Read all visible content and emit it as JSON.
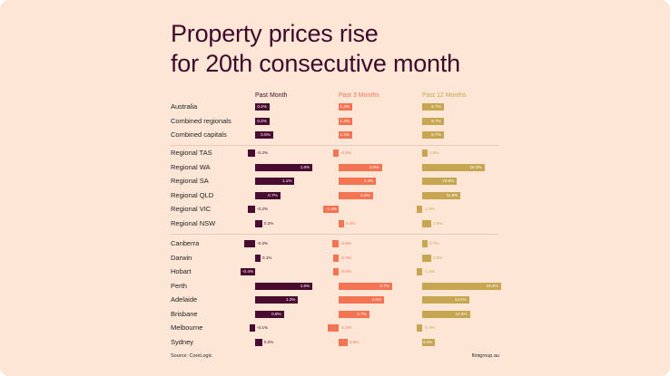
{
  "chart_data": {
    "type": "bar",
    "title": "Property prices rise for 20th consecutive month",
    "title_lines": [
      "Property prices rise",
      "for 20th consecutive month"
    ],
    "xlabel": "",
    "ylabel": "",
    "series": [
      {
        "name": "Past Month",
        "color": "#4a0b31",
        "key": "m1"
      },
      {
        "name": "Past 3 Months",
        "color": "#f47352",
        "key": "m3"
      },
      {
        "name": "Past 12 Months",
        "color": "#c6a650",
        "key": "m12"
      }
    ],
    "groups": [
      {
        "name": "national",
        "rows": [
          {
            "label": "Australia",
            "m1": 0.4,
            "m3": 1.2,
            "m12": 6.7
          },
          {
            "label": "Combined regionals",
            "m1": 0.4,
            "m3": 1.2,
            "m12": 6.7
          },
          {
            "label": "Combined capitals",
            "m1": 0.5,
            "m3": 1.2,
            "m12": 6.7
          }
        ]
      },
      {
        "name": "regional",
        "rows": [
          {
            "label": "Regional TAS",
            "m1": -0.2,
            "m3": -0.2,
            "m12": 1.6
          },
          {
            "label": "Regional WA",
            "m1": 1.6,
            "m3": 3.8,
            "m12": 19.3
          },
          {
            "label": "Regional SA",
            "m1": 1.1,
            "m3": 3.3,
            "m12": 10.8
          },
          {
            "label": "Regional QLD",
            "m1": 0.7,
            "m3": 3.0,
            "m12": 11.9
          },
          {
            "label": "Regional VIC",
            "m1": -0.2,
            "m3": -1.4,
            "m12": -1.6
          },
          {
            "label": "Regional NSW",
            "m1": 0.2,
            "m3": 0.4,
            "m12": 2.8
          }
        ]
      },
      {
        "name": "capitals",
        "rows": [
          {
            "label": "Canberra",
            "m1": -0.3,
            "m3": -0.6,
            "m12": 0.7
          },
          {
            "label": "Darwin",
            "m1": 0.1,
            "m3": -0.3,
            "m12": 2.8
          },
          {
            "label": "Hobart",
            "m1": -0.4,
            "m3": -0.5,
            "m12": -1.0
          },
          {
            "label": "Perth",
            "m1": 1.6,
            "m3": 4.7,
            "m12": 24.4
          },
          {
            "label": "Adelaide",
            "m1": 1.2,
            "m3": 4.0,
            "m12": 14.6
          },
          {
            "label": "Brisbane",
            "m1": 0.8,
            "m3": 2.7,
            "m12": 14.8
          },
          {
            "label": "Melbourne",
            "m1": -0.1,
            "m3": -1.0,
            "m12": -1.4
          },
          {
            "label": "Sydney",
            "m1": 0.2,
            "m3": 0.8,
            "m12": 4.0
          }
        ]
      }
    ],
    "value_format": "percent",
    "grid": false,
    "legend": "column headers at top"
  },
  "footer": {
    "source": "Source: CoreLogic",
    "site": "flintgroup.au"
  }
}
